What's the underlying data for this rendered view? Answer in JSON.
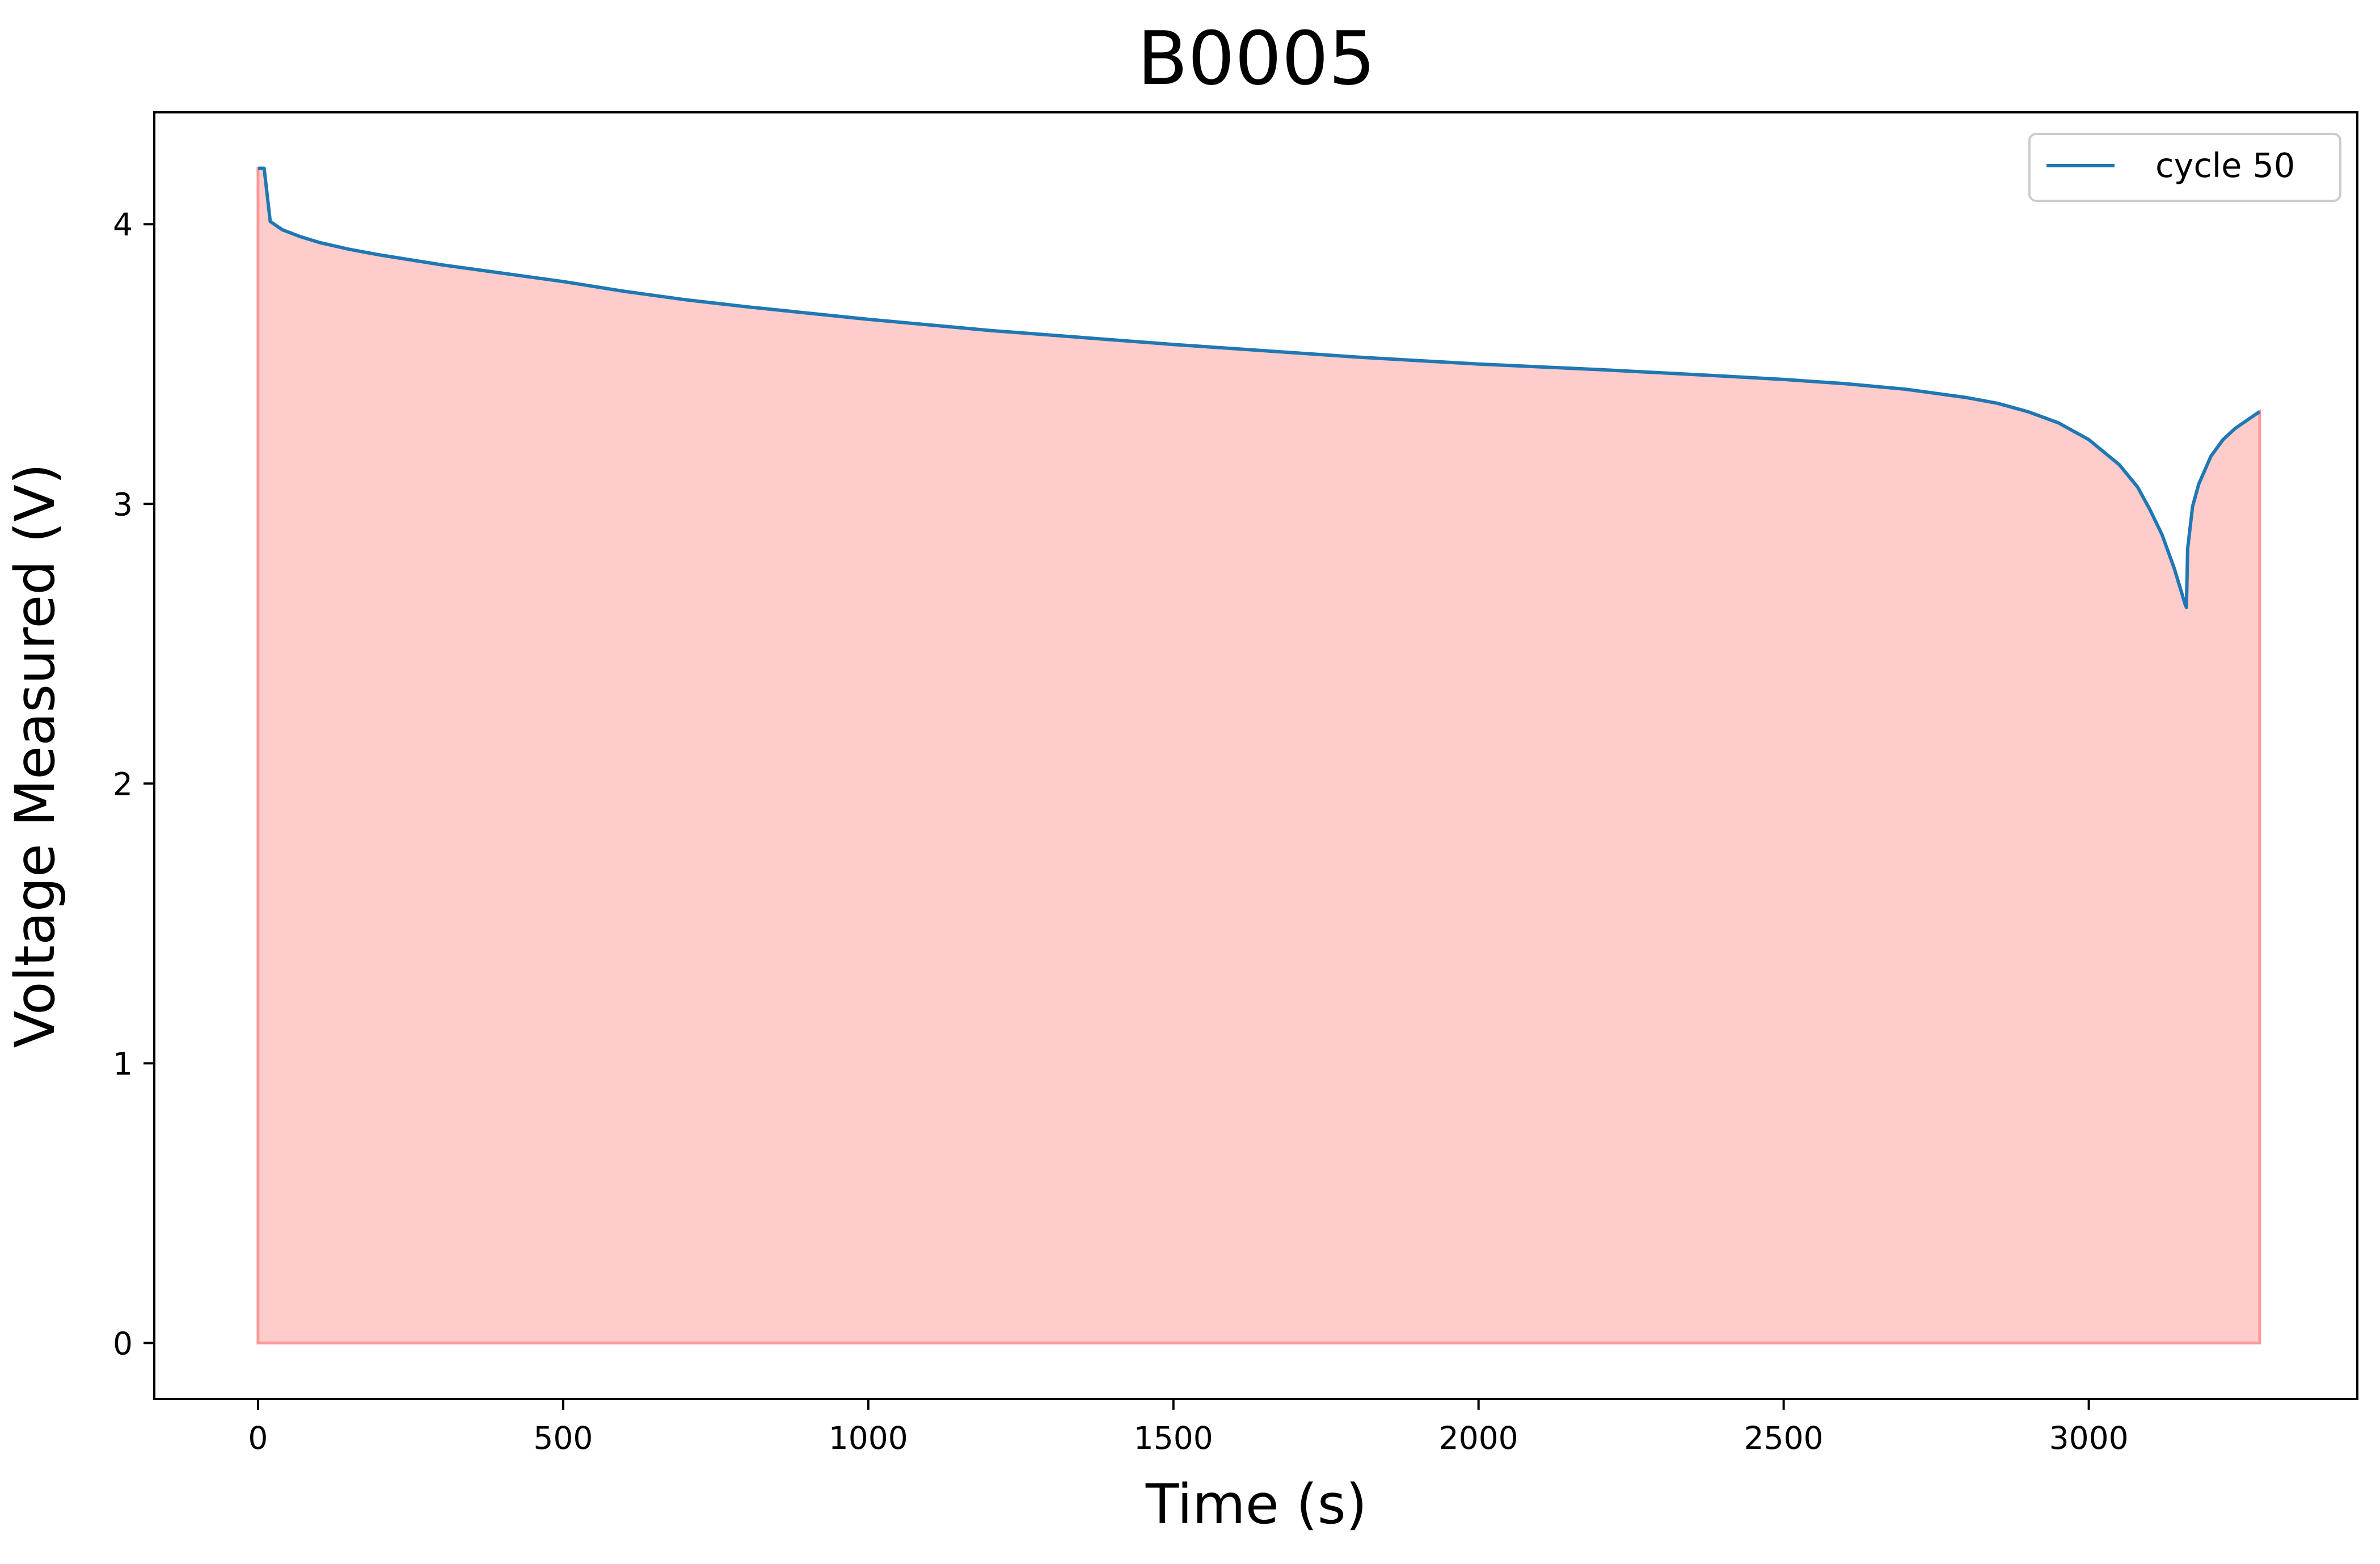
{
  "chart_data": {
    "type": "area",
    "title": "B0005",
    "xlabel": "Time (s)",
    "ylabel": "Voltage Measured (V)",
    "xlim": [
      -170,
      3440
    ],
    "ylim": [
      -0.2,
      4.4
    ],
    "xticks": [
      0,
      500,
      1000,
      1500,
      2000,
      2500,
      3000
    ],
    "xtick_labels": [
      "0",
      "500",
      "1000",
      "1500",
      "2000",
      "2500",
      "3000"
    ],
    "yticks": [
      0,
      1,
      2,
      3,
      4
    ],
    "ytick_labels": [
      "0",
      "1",
      "2",
      "3",
      "4"
    ],
    "grid": false,
    "legend": {
      "position": "top-right",
      "entries": [
        "cycle 50"
      ]
    },
    "colors": {
      "line": "#1f77b4",
      "fill": "#ff9999",
      "fill_edge": "#ff9999"
    },
    "series": [
      {
        "name": "cycle 50",
        "x": [
          0,
          10,
          20,
          40,
          70,
          100,
          150,
          200,
          300,
          400,
          500,
          600,
          700,
          800,
          1000,
          1200,
          1500,
          1800,
          2000,
          2200,
          2400,
          2500,
          2600,
          2700,
          2800,
          2850,
          2900,
          2950,
          3000,
          3050,
          3080,
          3100,
          3120,
          3140,
          3158,
          3160,
          3162,
          3170,
          3180,
          3200,
          3220,
          3240,
          3260,
          3280
        ],
        "y": [
          4.2,
          4.2,
          4.01,
          3.98,
          3.955,
          3.935,
          3.91,
          3.89,
          3.855,
          3.825,
          3.795,
          3.76,
          3.73,
          3.705,
          3.66,
          3.62,
          3.57,
          3.525,
          3.5,
          3.48,
          3.457,
          3.445,
          3.43,
          3.41,
          3.38,
          3.36,
          3.33,
          3.29,
          3.23,
          3.14,
          3.06,
          2.98,
          2.89,
          2.77,
          2.64,
          2.63,
          2.84,
          2.99,
          3.07,
          3.17,
          3.23,
          3.27,
          3.3,
          3.33
        ]
      }
    ]
  }
}
